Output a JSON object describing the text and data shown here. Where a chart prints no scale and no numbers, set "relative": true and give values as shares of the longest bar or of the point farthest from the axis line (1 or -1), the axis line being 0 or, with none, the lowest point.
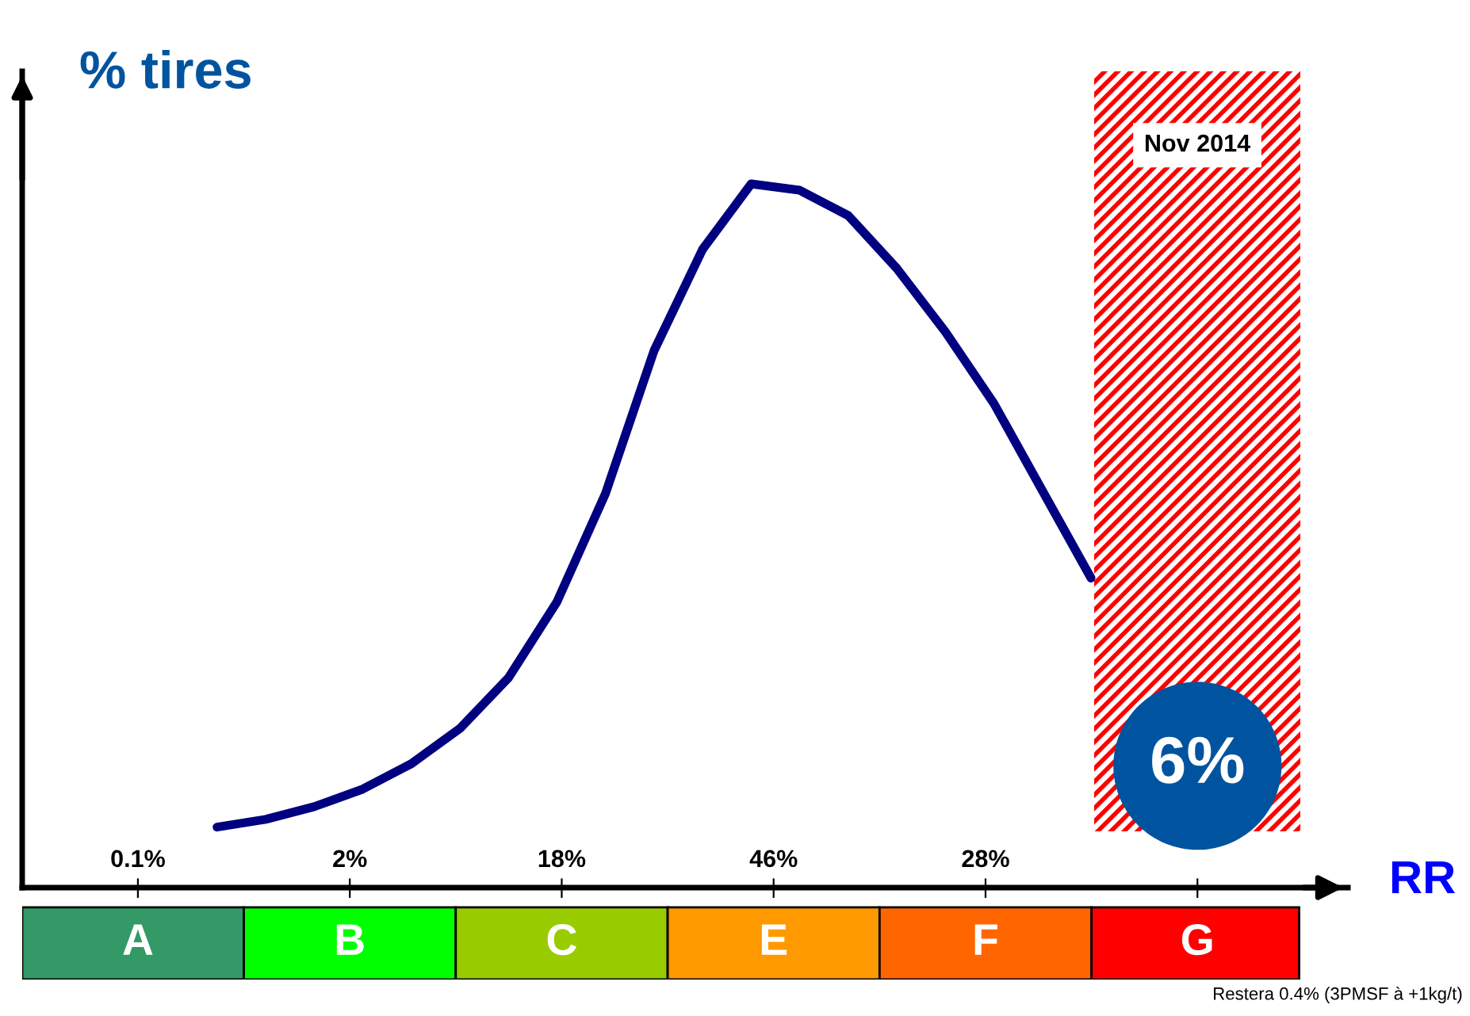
{
  "chart_data": [
    {
      "type": "line",
      "relative": true,
      "ylabel": "% tires",
      "xlabel": "RR",
      "categories": [
        null,
        null,
        null,
        null,
        null,
        null,
        null,
        null,
        null,
        null,
        null,
        null,
        null,
        null,
        null,
        null,
        null,
        null,
        null
      ],
      "series": [
        {
          "color": "#000080",
          "values": [
            0.086,
            0.097,
            0.115,
            0.14,
            0.176,
            0.226,
            0.298,
            0.406,
            0.56,
            0.763,
            0.907,
            1,
            0.991,
            0.955,
            0.88,
            0.79,
            0.688,
            0.564,
            0.44
          ]
        }
      ],
      "annotations": [
        "Nov 2014"
      ]
    },
    {
      "type": "other",
      "categories": [
        "A",
        "B",
        "C",
        "E",
        "F",
        "G"
      ],
      "colors": [
        "#339966",
        "#00ff00",
        "#99cc00",
        "#ff9900",
        "#ff6600",
        "#ff0000"
      ],
      "value_labels": [
        "0.1%",
        "2%",
        "18%",
        "46%",
        "28%",
        "6%"
      ],
      "annotations": [
        "Restera 0.4% (3PMSF à +1kg/t)"
      ]
    }
  ]
}
